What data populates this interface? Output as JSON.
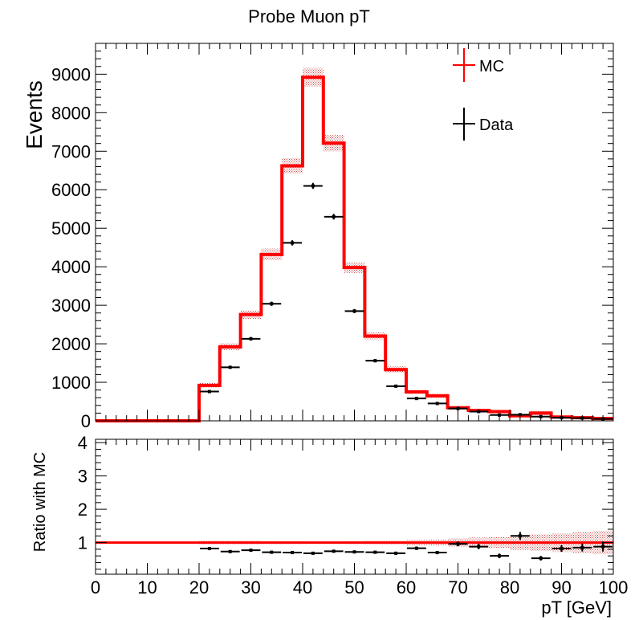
{
  "colors": {
    "mc": "#ff0000",
    "data": "#000000",
    "band": "#c84040",
    "frame": "#000000"
  },
  "chart_data": [
    {
      "type": "histogram",
      "title": "Probe Muon pT",
      "ylabel": "Events",
      "xlabel": "",
      "xlim": [
        0,
        100
      ],
      "ylim": [
        0,
        9800
      ],
      "y_ticks": [
        0,
        1000,
        2000,
        3000,
        4000,
        5000,
        6000,
        7000,
        8000,
        9000
      ],
      "y_tick_labels": [
        "0",
        "1000",
        "2000",
        "3000",
        "4000",
        "5000",
        "6000",
        "7000",
        "8000",
        "9000"
      ],
      "legend": {
        "position": "top-right",
        "mc_label": "MC",
        "data_label": "Data"
      },
      "bin_edges": [
        0,
        4,
        8,
        12,
        16,
        20,
        24,
        28,
        32,
        36,
        40,
        44,
        48,
        52,
        56,
        60,
        64,
        68,
        72,
        76,
        80,
        84,
        88,
        92,
        96,
        100
      ],
      "series": [
        {
          "name": "MC",
          "values": [
            0,
            0,
            0,
            0,
            0,
            920,
            1920,
            2760,
            4320,
            6620,
            8920,
            7210,
            3980,
            2200,
            1330,
            750,
            650,
            340,
            270,
            240,
            130,
            200,
            100,
            80,
            60
          ],
          "errors": [
            0,
            0,
            0,
            0,
            0,
            60,
            90,
            110,
            150,
            200,
            240,
            210,
            140,
            100,
            80,
            60,
            55,
            40,
            40,
            40,
            40,
            50,
            40,
            40,
            40
          ]
        },
        {
          "name": "Data",
          "values": [
            null,
            null,
            null,
            null,
            null,
            760,
            1390,
            2130,
            3040,
            4620,
            6100,
            5300,
            2850,
            1560,
            900,
            580,
            450,
            320,
            240,
            150,
            160,
            110,
            80,
            70,
            50
          ],
          "errors": [
            0,
            0,
            0,
            0,
            0,
            28,
            37,
            46,
            55,
            68,
            78,
            73,
            53,
            40,
            30,
            24,
            21,
            18,
            15,
            12,
            13,
            10,
            9,
            8,
            7
          ]
        }
      ]
    },
    {
      "type": "ratio",
      "title": "",
      "ylabel": "Ratio with MC",
      "xlabel": "pT [GeV]",
      "xlim": [
        0,
        100
      ],
      "ylim": [
        0.05,
        4.1
      ],
      "y_ticks": [
        1,
        2,
        3,
        4
      ],
      "y_tick_labels": [
        "1",
        "2",
        "3",
        "4"
      ],
      "x_ticks": [
        0,
        10,
        20,
        30,
        40,
        50,
        60,
        70,
        80,
        90,
        100
      ],
      "x_tick_labels": [
        "0",
        "10",
        "20",
        "30",
        "40",
        "50",
        "60",
        "70",
        "80",
        "90",
        "100"
      ],
      "reference_line": 1,
      "band_x": [
        20,
        24,
        28,
        32,
        36,
        40,
        44,
        48,
        52,
        56,
        60,
        64,
        68,
        72,
        76,
        80,
        84,
        88,
        92,
        96,
        100
      ],
      "band_halfwidth": [
        0.06,
        0.05,
        0.05,
        0.04,
        0.04,
        0.03,
        0.03,
        0.04,
        0.05,
        0.06,
        0.08,
        0.09,
        0.12,
        0.15,
        0.17,
        0.22,
        0.25,
        0.28,
        0.32,
        0.35,
        0.35
      ],
      "points": {
        "x": [
          22,
          26,
          30,
          34,
          38,
          42,
          46,
          50,
          54,
          58,
          62,
          66,
          70,
          74,
          78,
          82,
          86,
          90,
          94,
          98
        ],
        "y": [
          0.82,
          0.73,
          0.77,
          0.71,
          0.7,
          0.68,
          0.74,
          0.72,
          0.71,
          0.68,
          0.83,
          0.7,
          0.96,
          0.88,
          0.6,
          1.2,
          0.53,
          0.82,
          0.85,
          0.88
        ],
        "errors": [
          0.04,
          0.03,
          0.03,
          0.02,
          0.02,
          0.02,
          0.02,
          0.02,
          0.03,
          0.03,
          0.05,
          0.05,
          0.07,
          0.08,
          0.07,
          0.12,
          0.07,
          0.1,
          0.12,
          0.15
        ]
      }
    }
  ]
}
